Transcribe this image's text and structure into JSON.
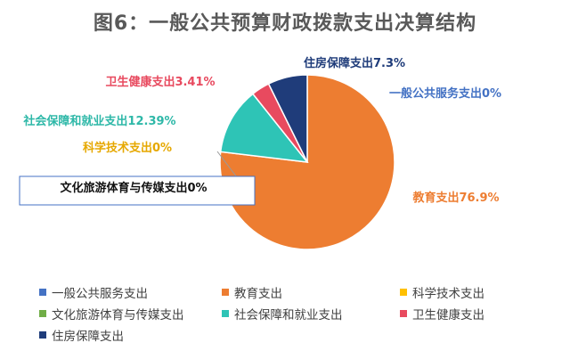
{
  "chart_data": {
    "type": "pie",
    "title": "图6：一般公共预算财政拨款支出决算结构",
    "slices": [
      {
        "name": "一般公共服务支出",
        "value": 0,
        "color": "#4472C4",
        "label": "一般公共服务支出0%"
      },
      {
        "name": "教育支出",
        "value": 76.9,
        "color": "#ED7D31",
        "label": "教育支出76.9%"
      },
      {
        "name": "科学技术支出",
        "value": 0,
        "color": "#FFC000",
        "label": "科学技术支出0%"
      },
      {
        "name": "文化旅游体育与传媒支出",
        "value": 0,
        "color": "#70AD47",
        "label": "文化旅游体育与传媒支出0%"
      },
      {
        "name": "社会保障和就业支出",
        "value": 12.39,
        "color": "#2EC4B6",
        "label": "社会保障和就业支出12.39%"
      },
      {
        "name": "卫生健康支出",
        "value": 3.41,
        "color": "#E84A5F",
        "label": "卫生健康支出3.41%"
      },
      {
        "name": "住房保障支出",
        "value": 7.3,
        "color": "#1F3C7A",
        "label": "住房保障支出7.3%"
      }
    ],
    "legend_placement": "bottom"
  }
}
